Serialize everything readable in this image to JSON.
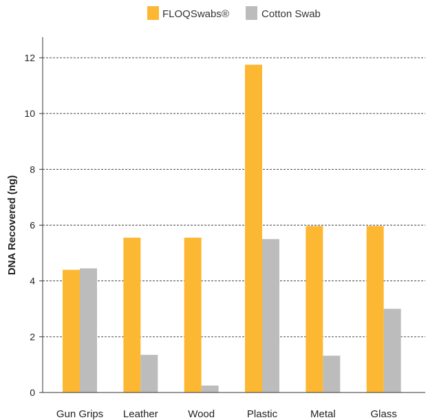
{
  "chart_data": {
    "type": "bar",
    "title": "",
    "xlabel": "",
    "ylabel": "DNA Recovered (ng)",
    "categories": [
      "Gun Grips",
      "Leather",
      "Wood",
      "Plastic",
      "Metal",
      "Glass"
    ],
    "series": [
      {
        "name": "FLOQSwabs®",
        "color": "#FDB833",
        "values": [
          4.4,
          5.55,
          5.55,
          11.75,
          5.97,
          5.97
        ]
      },
      {
        "name": "Cotton Swab",
        "color": "#BCBCBC",
        "values": [
          4.45,
          1.35,
          0.25,
          5.5,
          1.32,
          3.0
        ]
      }
    ],
    "ylim": [
      0,
      12
    ],
    "yticks": [
      0,
      2,
      4,
      6,
      8,
      10,
      12
    ],
    "grid": true,
    "legend": "top-center"
  }
}
